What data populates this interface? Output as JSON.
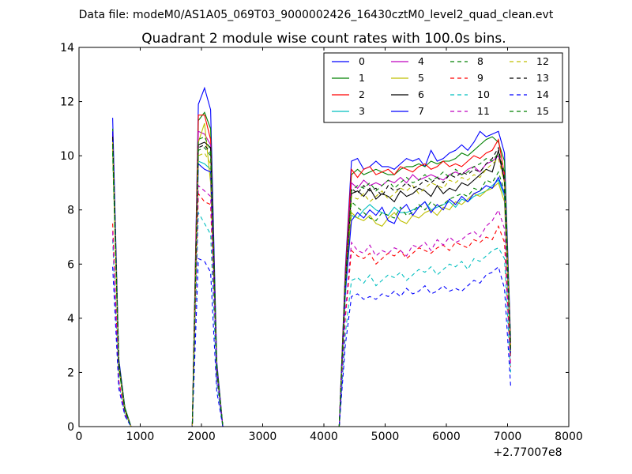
{
  "chart_data": {
    "type": "line",
    "subtitle": "Data file: modeM0/AS1A05_069T03_9000002426_16430cztM0_level2_quad_clean.evt",
    "title": "Quadrant 2 module wise count rates with 100.0s bins.",
    "xlabel": "",
    "ylabel": "",
    "x_offset_label": "+2.77007e8",
    "xlim": [
      0,
      8000
    ],
    "ylim": [
      0,
      14
    ],
    "x_ticks": [
      "0",
      "1000",
      "2000",
      "3000",
      "4000",
      "5000",
      "6000",
      "7000",
      "8000"
    ],
    "y_ticks": [
      "0",
      "2",
      "4",
      "6",
      "8",
      "10",
      "12",
      "14"
    ],
    "grid": false,
    "legend_position": "top-right",
    "x": [
      550,
      650,
      750,
      850,
      950,
      1050,
      1150,
      1250,
      1350,
      1450,
      1550,
      1650,
      1750,
      1850,
      1950,
      2050,
      2150,
      2250,
      2350,
      2450,
      2550,
      2650,
      2750,
      2850,
      2950,
      3050,
      3150,
      3250,
      3350,
      3450,
      3550,
      3650,
      3750,
      3850,
      3950,
      4050,
      4150,
      4250,
      4350,
      4450,
      4550,
      4650,
      4750,
      4850,
      4950,
      5050,
      5150,
      5250,
      5350,
      5450,
      5550,
      5650,
      5750,
      5850,
      5950,
      6050,
      6150,
      6250,
      6350,
      6450,
      6550,
      6650,
      6750,
      6850,
      6950,
      7050
    ],
    "series": [
      {
        "name": "0",
        "color": "#0000ff",
        "dash": false,
        "values": [
          11.4,
          2.5,
          0.7,
          0.0,
          0.0,
          0.0,
          0.0,
          0.0,
          0.0,
          0.0,
          0.0,
          0.0,
          0.0,
          0.0,
          11.9,
          12.5,
          11.7,
          2.4,
          0.0,
          0.0,
          0.0,
          0.0,
          0.0,
          0.0,
          0.0,
          0.0,
          0.0,
          0.0,
          0.0,
          0.0,
          0.0,
          0.0,
          0.0,
          0.0,
          0.0,
          0.0,
          0.0,
          0.0,
          5.8,
          9.8,
          9.9,
          9.5,
          9.6,
          9.8,
          9.6,
          9.6,
          9.5,
          9.7,
          9.9,
          9.8,
          9.9,
          9.6,
          10.2,
          9.8,
          9.9,
          10.1,
          10.2,
          10.4,
          10.2,
          10.5,
          10.9,
          10.7,
          10.8,
          10.9,
          10.1,
          3.2
        ]
      },
      {
        "name": "1",
        "color": "#008000",
        "dash": false,
        "values": [
          11.0,
          2.4,
          0.7,
          0.0,
          0.0,
          0.0,
          0.0,
          0.0,
          0.0,
          0.0,
          0.0,
          0.0,
          0.0,
          0.0,
          11.3,
          11.6,
          11.0,
          2.3,
          0.0,
          0.0,
          0.0,
          0.0,
          0.0,
          0.0,
          0.0,
          0.0,
          0.0,
          0.0,
          0.0,
          0.0,
          0.0,
          0.0,
          0.0,
          0.0,
          0.0,
          0.0,
          0.0,
          0.0,
          5.6,
          9.3,
          9.5,
          9.3,
          9.4,
          9.5,
          9.4,
          9.3,
          9.3,
          9.5,
          9.6,
          9.6,
          9.7,
          9.6,
          9.8,
          9.7,
          9.8,
          9.8,
          9.9,
          10.1,
          10.0,
          10.2,
          10.4,
          10.6,
          10.7,
          10.5,
          9.8,
          3.0
        ]
      },
      {
        "name": "2",
        "color": "#ff0000",
        "dash": false,
        "values": [
          10.8,
          2.3,
          0.6,
          0.0,
          0.0,
          0.0,
          0.0,
          0.0,
          0.0,
          0.0,
          0.0,
          0.0,
          0.0,
          0.0,
          11.5,
          11.5,
          10.6,
          2.2,
          0.0,
          0.0,
          0.0,
          0.0,
          0.0,
          0.0,
          0.0,
          0.0,
          0.0,
          0.0,
          0.0,
          0.0,
          0.0,
          0.0,
          0.0,
          0.0,
          0.0,
          0.0,
          0.0,
          0.0,
          5.6,
          9.5,
          9.2,
          9.5,
          9.6,
          9.3,
          9.4,
          9.5,
          9.3,
          9.6,
          9.5,
          9.4,
          9.6,
          9.7,
          9.5,
          9.6,
          9.8,
          9.6,
          9.7,
          9.6,
          9.8,
          10.0,
          9.9,
          10.1,
          10.2,
          10.6,
          9.3,
          3.0
        ]
      },
      {
        "name": "3",
        "color": "#00bfbf",
        "dash": false,
        "values": [
          10.2,
          2.2,
          0.6,
          0.0,
          0.0,
          0.0,
          0.0,
          0.0,
          0.0,
          0.0,
          0.0,
          0.0,
          0.0,
          0.0,
          9.8,
          9.7,
          9.5,
          2.0,
          0.0,
          0.0,
          0.0,
          0.0,
          0.0,
          0.0,
          0.0,
          0.0,
          0.0,
          0.0,
          0.0,
          0.0,
          0.0,
          0.0,
          0.0,
          0.0,
          0.0,
          0.0,
          0.0,
          0.0,
          4.8,
          7.8,
          7.7,
          8.0,
          8.2,
          8.0,
          7.9,
          7.8,
          8.1,
          7.9,
          7.9,
          8.0,
          8.1,
          8.3,
          8.0,
          8.1,
          8.2,
          8.3,
          8.1,
          8.4,
          8.3,
          8.5,
          8.6,
          8.7,
          8.9,
          9.1,
          8.5,
          2.6
        ]
      },
      {
        "name": "4",
        "color": "#bf00bf",
        "dash": false,
        "values": [
          10.9,
          2.3,
          0.6,
          0.0,
          0.0,
          0.0,
          0.0,
          0.0,
          0.0,
          0.0,
          0.0,
          0.0,
          0.0,
          0.0,
          10.9,
          10.8,
          10.4,
          2.2,
          0.0,
          0.0,
          0.0,
          0.0,
          0.0,
          0.0,
          0.0,
          0.0,
          0.0,
          0.0,
          0.0,
          0.0,
          0.0,
          0.0,
          0.0,
          0.0,
          0.0,
          0.0,
          0.0,
          0.0,
          5.4,
          9.0,
          8.8,
          9.1,
          8.9,
          9.0,
          8.9,
          9.1,
          9.0,
          9.2,
          9.0,
          9.3,
          9.1,
          9.2,
          9.3,
          9.2,
          9.1,
          9.3,
          9.4,
          9.3,
          9.5,
          9.6,
          9.4,
          9.7,
          9.8,
          10.0,
          9.2,
          2.9
        ]
      },
      {
        "name": "5",
        "color": "#bfbf00",
        "dash": false,
        "values": [
          10.3,
          2.2,
          0.6,
          0.0,
          0.0,
          0.0,
          0.0,
          0.0,
          0.0,
          0.0,
          0.0,
          0.0,
          0.0,
          0.0,
          10.5,
          11.2,
          9.0,
          2.1,
          0.0,
          0.0,
          0.0,
          0.0,
          0.0,
          0.0,
          0.0,
          0.0,
          0.0,
          0.0,
          0.0,
          0.0,
          0.0,
          0.0,
          0.0,
          0.0,
          0.0,
          0.0,
          0.0,
          0.0,
          5.0,
          7.9,
          7.7,
          7.6,
          7.8,
          7.5,
          7.4,
          7.7,
          7.9,
          7.6,
          7.5,
          7.8,
          7.7,
          7.9,
          8.0,
          7.8,
          8.1,
          8.0,
          8.3,
          8.2,
          8.4,
          8.6,
          8.5,
          8.7,
          8.8,
          9.0,
          8.3,
          2.6
        ]
      },
      {
        "name": "6",
        "color": "#000000",
        "dash": false,
        "values": [
          10.6,
          2.3,
          0.6,
          0.0,
          0.0,
          0.0,
          0.0,
          0.0,
          0.0,
          0.0,
          0.0,
          0.0,
          0.0,
          0.0,
          10.4,
          10.5,
          10.3,
          2.1,
          0.0,
          0.0,
          0.0,
          0.0,
          0.0,
          0.0,
          0.0,
          0.0,
          0.0,
          0.0,
          0.0,
          0.0,
          0.0,
          0.0,
          0.0,
          0.0,
          0.0,
          0.0,
          0.0,
          0.0,
          5.2,
          8.6,
          8.7,
          8.5,
          8.8,
          8.4,
          8.6,
          8.5,
          8.3,
          8.7,
          8.5,
          8.6,
          8.8,
          8.7,
          8.5,
          8.9,
          8.6,
          8.8,
          8.7,
          9.0,
          8.9,
          9.1,
          9.3,
          9.5,
          9.4,
          10.2,
          9.0,
          2.8
        ]
      },
      {
        "name": "7",
        "color": "#0000ff",
        "dash": false,
        "values": [
          10.9,
          2.3,
          0.6,
          0.0,
          0.0,
          0.0,
          0.0,
          0.0,
          0.0,
          0.0,
          0.0,
          0.0,
          0.0,
          0.0,
          9.7,
          9.5,
          9.4,
          2.1,
          0.0,
          0.0,
          0.0,
          0.0,
          0.0,
          0.0,
          0.0,
          0.0,
          0.0,
          0.0,
          0.0,
          0.0,
          0.0,
          0.0,
          0.0,
          0.0,
          0.0,
          0.0,
          0.0,
          0.0,
          5.0,
          7.6,
          7.9,
          7.7,
          8.0,
          7.8,
          8.1,
          7.6,
          7.5,
          8.0,
          8.2,
          7.8,
          8.1,
          8.3,
          7.9,
          8.2,
          8.0,
          8.4,
          8.2,
          8.5,
          8.3,
          8.6,
          8.7,
          8.9,
          8.8,
          9.2,
          8.6,
          2.7
        ]
      },
      {
        "name": "8",
        "color": "#008000",
        "dash": true,
        "values": [
          10.1,
          2.2,
          0.6,
          0.0,
          0.0,
          0.0,
          0.0,
          0.0,
          0.0,
          0.0,
          0.0,
          0.0,
          0.0,
          0.0,
          10.2,
          10.3,
          10.0,
          2.1,
          0.0,
          0.0,
          0.0,
          0.0,
          0.0,
          0.0,
          0.0,
          0.0,
          0.0,
          0.0,
          0.0,
          0.0,
          0.0,
          0.0,
          0.0,
          0.0,
          0.0,
          0.0,
          0.0,
          0.0,
          5.1,
          8.3,
          8.1,
          7.9,
          7.7,
          7.6,
          7.9,
          7.8,
          7.7,
          8.1,
          7.8,
          7.9,
          8.2,
          8.0,
          8.3,
          8.1,
          8.2,
          8.4,
          8.5,
          8.6,
          8.5,
          8.8,
          8.7,
          9.1,
          9.0,
          9.4,
          8.7,
          2.7
        ]
      },
      {
        "name": "9",
        "color": "#ff0000",
        "dash": true,
        "values": [
          7.5,
          1.7,
          0.5,
          0.0,
          0.0,
          0.0,
          0.0,
          0.0,
          0.0,
          0.0,
          0.0,
          0.0,
          0.0,
          0.0,
          8.6,
          8.3,
          8.2,
          1.8,
          0.0,
          0.0,
          0.0,
          0.0,
          0.0,
          0.0,
          0.0,
          0.0,
          0.0,
          0.0,
          0.0,
          0.0,
          0.0,
          0.0,
          0.0,
          0.0,
          0.0,
          0.0,
          0.0,
          0.0,
          4.0,
          6.5,
          6.3,
          6.2,
          6.4,
          6.0,
          6.2,
          6.4,
          6.3,
          6.5,
          6.2,
          6.4,
          6.6,
          6.5,
          6.4,
          6.6,
          6.7,
          6.5,
          6.8,
          6.7,
          6.6,
          6.9,
          6.8,
          7.0,
          6.9,
          7.4,
          6.8,
          2.2
        ]
      },
      {
        "name": "10",
        "color": "#00bfbf",
        "dash": true,
        "values": [
          6.9,
          1.6,
          0.4,
          0.0,
          0.0,
          0.0,
          0.0,
          0.0,
          0.0,
          0.0,
          0.0,
          0.0,
          0.0,
          0.0,
          7.9,
          7.5,
          7.1,
          1.6,
          0.0,
          0.0,
          0.0,
          0.0,
          0.0,
          0.0,
          0.0,
          0.0,
          0.0,
          0.0,
          0.0,
          0.0,
          0.0,
          0.0,
          0.0,
          0.0,
          0.0,
          0.0,
          0.0,
          0.0,
          3.4,
          5.4,
          5.5,
          5.3,
          5.6,
          5.2,
          5.4,
          5.6,
          5.5,
          5.7,
          5.4,
          5.6,
          5.8,
          5.7,
          5.9,
          5.6,
          5.8,
          6.0,
          5.9,
          6.1,
          5.8,
          6.2,
          6.1,
          6.3,
          6.5,
          6.6,
          6.2,
          2.0
        ]
      },
      {
        "name": "11",
        "color": "#bf00bf",
        "dash": true,
        "values": [
          7.2,
          1.6,
          0.5,
          0.0,
          0.0,
          0.0,
          0.0,
          0.0,
          0.0,
          0.0,
          0.0,
          0.0,
          0.0,
          0.0,
          8.9,
          8.7,
          8.5,
          1.9,
          0.0,
          0.0,
          0.0,
          0.0,
          0.0,
          0.0,
          0.0,
          0.0,
          0.0,
          0.0,
          0.0,
          0.0,
          0.0,
          0.0,
          0.0,
          0.0,
          0.0,
          0.0,
          0.0,
          0.0,
          4.2,
          6.8,
          6.5,
          6.4,
          6.7,
          6.3,
          6.5,
          6.4,
          6.6,
          6.5,
          6.3,
          6.7,
          6.6,
          6.8,
          6.5,
          6.9,
          6.7,
          7.0,
          6.8,
          6.9,
          7.1,
          7.2,
          7.0,
          7.4,
          7.6,
          8.0,
          7.3,
          2.3
        ]
      },
      {
        "name": "12",
        "color": "#bfbf00",
        "dash": true,
        "values": [
          10.5,
          2.3,
          0.6,
          0.0,
          0.0,
          0.0,
          0.0,
          0.0,
          0.0,
          0.0,
          0.0,
          0.0,
          0.0,
          0.0,
          10.0,
          10.1,
          9.7,
          2.1,
          0.0,
          0.0,
          0.0,
          0.0,
          0.0,
          0.0,
          0.0,
          0.0,
          0.0,
          0.0,
          0.0,
          0.0,
          0.0,
          0.0,
          0.0,
          0.0,
          0.0,
          0.0,
          0.0,
          0.0,
          5.2,
          8.5,
          8.4,
          8.6,
          8.3,
          8.5,
          8.7,
          8.4,
          8.6,
          8.8,
          8.7,
          8.9,
          8.6,
          8.8,
          9.0,
          8.9,
          8.8,
          9.1,
          9.0,
          9.2,
          9.1,
          9.3,
          9.2,
          9.5,
          9.7,
          9.9,
          9.0,
          2.8
        ]
      },
      {
        "name": "13",
        "color": "#000000",
        "dash": true,
        "values": [
          10.7,
          2.3,
          0.6,
          0.0,
          0.0,
          0.0,
          0.0,
          0.0,
          0.0,
          0.0,
          0.0,
          0.0,
          0.0,
          0.0,
          10.3,
          10.4,
          10.1,
          2.1,
          0.0,
          0.0,
          0.0,
          0.0,
          0.0,
          0.0,
          0.0,
          0.0,
          0.0,
          0.0,
          0.0,
          0.0,
          0.0,
          0.0,
          0.0,
          0.0,
          0.0,
          0.0,
          0.0,
          0.0,
          5.3,
          8.8,
          8.6,
          8.9,
          8.7,
          8.8,
          8.5,
          8.9,
          8.7,
          8.8,
          9.0,
          8.8,
          8.9,
          9.1,
          9.0,
          9.2,
          9.0,
          9.3,
          9.2,
          9.4,
          9.3,
          9.5,
          9.4,
          9.7,
          9.9,
          10.3,
          9.1,
          2.9
        ]
      },
      {
        "name": "14",
        "color": "#0000ff",
        "dash": true,
        "values": [
          5.9,
          1.4,
          0.4,
          0.0,
          0.0,
          0.0,
          0.0,
          0.0,
          0.0,
          0.0,
          0.0,
          0.0,
          0.0,
          0.0,
          6.2,
          6.1,
          5.7,
          1.3,
          0.0,
          0.0,
          0.0,
          0.0,
          0.0,
          0.0,
          0.0,
          0.0,
          0.0,
          0.0,
          0.0,
          0.0,
          0.0,
          0.0,
          0.0,
          0.0,
          0.0,
          0.0,
          0.0,
          0.0,
          3.0,
          4.8,
          4.9,
          4.7,
          4.8,
          4.7,
          4.9,
          4.8,
          5.0,
          4.8,
          5.1,
          4.9,
          5.0,
          5.2,
          4.9,
          5.0,
          5.2,
          5.0,
          5.1,
          5.0,
          5.2,
          5.4,
          5.3,
          5.6,
          5.7,
          5.9,
          5.1,
          1.5
        ]
      },
      {
        "name": "15",
        "color": "#008000",
        "dash": true,
        "values": [
          10.4,
          2.2,
          0.6,
          0.0,
          0.0,
          0.0,
          0.0,
          0.0,
          0.0,
          0.0,
          0.0,
          0.0,
          0.0,
          0.0,
          10.6,
          10.7,
          10.2,
          2.2,
          0.0,
          0.0,
          0.0,
          0.0,
          0.0,
          0.0,
          0.0,
          0.0,
          0.0,
          0.0,
          0.0,
          0.0,
          0.0,
          0.0,
          0.0,
          0.0,
          0.0,
          0.0,
          0.0,
          0.0,
          5.3,
          8.7,
          8.9,
          8.8,
          9.0,
          8.7,
          8.9,
          9.1,
          8.8,
          9.0,
          9.2,
          9.0,
          9.1,
          9.3,
          9.1,
          9.2,
          9.4,
          9.2,
          9.5,
          9.3,
          9.4,
          9.6,
          9.7,
          9.9,
          9.8,
          10.1,
          9.4,
          2.9
        ]
      }
    ]
  }
}
